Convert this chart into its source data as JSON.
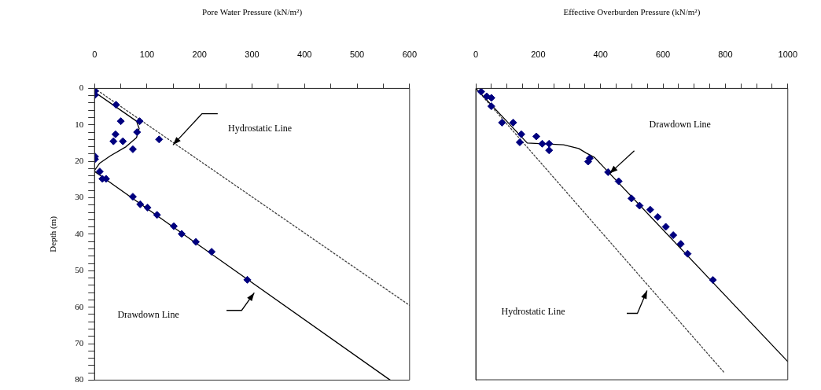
{
  "chart_data": [
    {
      "type": "scatter",
      "xlabel": "Pore Water Pressure (kN/m²)",
      "ylabel": "Depth (m)",
      "xlim": [
        0,
        600
      ],
      "xticks": [
        0,
        {
          "value": 50,
          "label": null
        },
        100,
        {
          "value": 150,
          "label": null
        },
        200,
        {
          "value": 250,
          "label": null
        },
        300,
        {
          "value": 350,
          "label": null
        },
        400,
        {
          "value": 450,
          "label": null
        },
        500,
        {
          "value": 550,
          "label": null
        },
        600
      ],
      "ylim": [
        80,
        0
      ],
      "yticks": [
        0,
        {
          "value": 2,
          "label": null
        },
        {
          "value": 4,
          "label": null
        },
        {
          "value": 6,
          "label": null
        },
        {
          "value": 8,
          "label": null
        },
        10,
        {
          "value": 12,
          "label": null
        },
        {
          "value": 14,
          "label": null
        },
        {
          "value": 16,
          "label": null
        },
        {
          "value": 18,
          "label": null
        },
        20,
        {
          "value": 22,
          "label": null
        },
        {
          "value": 24,
          "label": null
        },
        {
          "value": 26,
          "label": null
        },
        {
          "value": 28,
          "label": null
        },
        30,
        {
          "value": 32,
          "label": null
        },
        {
          "value": 34,
          "label": null
        },
        {
          "value": 36,
          "label": null
        },
        {
          "value": 38,
          "label": null
        },
        40,
        {
          "value": 42,
          "label": null
        },
        {
          "value": 44,
          "label": null
        },
        {
          "value": 46,
          "label": null
        },
        {
          "value": 48,
          "label": null
        },
        50,
        {
          "value": 52,
          "label": null
        },
        {
          "value": 54,
          "label": null
        },
        {
          "value": 56,
          "label": null
        },
        {
          "value": 58,
          "label": null
        },
        60,
        {
          "value": 62,
          "label": null
        },
        {
          "value": 64,
          "label": null
        },
        {
          "value": 66,
          "label": null
        },
        {
          "value": 68,
          "label": null
        },
        70,
        {
          "value": 72,
          "label": null
        },
        {
          "value": 74,
          "label": null
        },
        {
          "value": 76,
          "label": null
        },
        {
          "value": 78,
          "label": null
        },
        80
      ],
      "series": [
        {
          "type": "scatter",
          "color": "#00007f",
          "marker": "diamond",
          "x": [
            1,
            1,
            41,
            50,
            86,
            40,
            81,
            36,
            54,
            123,
            73,
            1,
            1,
            10,
            15,
            22,
            73,
            87,
            101,
            119,
            151,
            166,
            193,
            223,
            291
          ],
          "values": [
            0.7,
            1.8,
            4.5,
            9,
            9,
            12.6,
            12,
            14.5,
            14.5,
            14,
            16.7,
            18.7,
            19.4,
            22.8,
            24.8,
            24.8,
            29.7,
            31.8,
            32.7,
            34.7,
            37.8,
            39.9,
            42.1,
            44.8,
            52.5
          ]
        },
        {
          "type": "line",
          "color": "#000000",
          "marker": "none",
          "line_style": "solid",
          "x": [
            0,
            80,
            85,
            80,
            60,
            30,
            10,
            0,
            2,
            563
          ],
          "values": [
            1,
            9,
            11,
            13.5,
            16,
            18.5,
            20.5,
            22.5,
            23,
            80
          ]
        },
        {
          "type": "line",
          "color": "#404040",
          "marker": "none",
          "line_style": "dotted",
          "x": [
            0,
            600
          ],
          "values": [
            0,
            59.5
          ]
        }
      ],
      "annotations": [
        "Hydrostatic Line",
        "Drawdown Line"
      ]
    },
    {
      "type": "scatter",
      "xlabel": "Effective Overburden Pressure (kN/m²)",
      "tick_labels": "x",
      "xlim": [
        0,
        1000
      ],
      "xticks": [
        0,
        {
          "value": 50,
          "label": null
        },
        {
          "value": 100,
          "label": null
        },
        {
          "value": 150,
          "label": null
        },
        200,
        {
          "value": 250,
          "label": null
        },
        {
          "value": 300,
          "label": null
        },
        {
          "value": 350,
          "label": null
        },
        400,
        {
          "value": 450,
          "label": null
        },
        {
          "value": 500,
          "label": null
        },
        {
          "value": 550,
          "label": null
        },
        600,
        {
          "value": 650,
          "label": null
        },
        {
          "value": 700,
          "label": null
        },
        {
          "value": 750,
          "label": null
        },
        800,
        {
          "value": 850,
          "label": null
        },
        {
          "value": 900,
          "label": null
        },
        {
          "value": 950,
          "label": null
        },
        1000
      ],
      "ylim": [
        80,
        0
      ],
      "series": [
        {
          "type": "scatter",
          "color": "#00007f",
          "marker": "diamond",
          "x": [
            17,
            35,
            50,
            50,
            84,
            120,
            146,
            194,
            141,
            213,
            235,
            235,
            365,
            360,
            424,
            458,
            499,
            525,
            559,
            583,
            609,
            633,
            657,
            679,
            760
          ],
          "values": [
            0.9,
            2.2,
            2.6,
            4.9,
            9.4,
            9.4,
            12.6,
            13.2,
            14.8,
            15.2,
            15.2,
            17,
            19.2,
            20.1,
            23,
            25.5,
            30.2,
            32.2,
            33.3,
            35.3,
            38,
            40.3,
            42.7,
            45.4,
            52.6
          ]
        },
        {
          "type": "line",
          "color": "#000000",
          "marker": "none",
          "line_style": "solid",
          "x": [
            0,
            165,
            281,
            330,
            353,
            381,
            1000
          ],
          "values": [
            0,
            15,
            15.5,
            16.5,
            17.7,
            19,
            75
          ]
        },
        {
          "type": "line",
          "color": "#404040",
          "marker": "none",
          "line_style": "dotted",
          "x": [
            0,
            796
          ],
          "values": [
            0,
            78
          ]
        }
      ],
      "annotations": [
        "Drawdown Line",
        "Hydrostatic Line"
      ]
    }
  ]
}
